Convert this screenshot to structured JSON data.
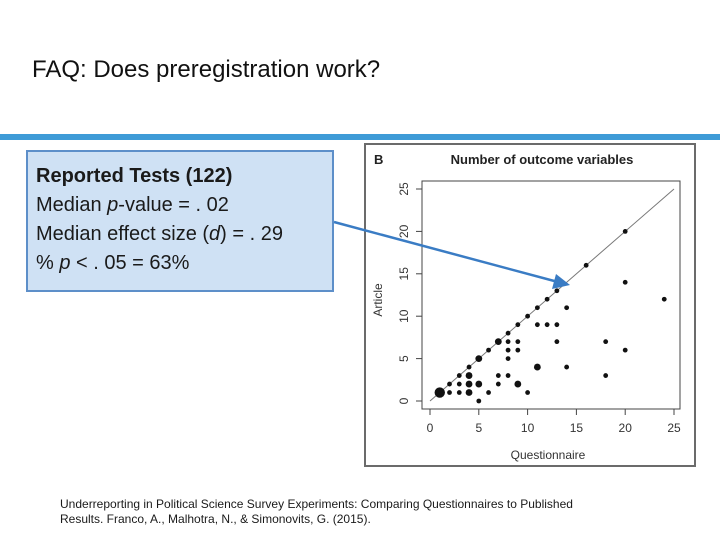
{
  "slide": {
    "title": "FAQ: Does preregistration work?",
    "accent_color": "#3e9bd7"
  },
  "stats_box": {
    "heading": "Reported Tests (122)",
    "median_p_prefix": "Median ",
    "median_p_italic": "p",
    "median_p_suffix": "-value = . 02",
    "median_d_prefix": "Median effect size (",
    "median_d_italic": "d",
    "median_d_suffix": ") = . 29",
    "pct_prefix": "% ",
    "pct_italic": "p",
    "pct_suffix": " < . 05 = 63%",
    "fill_color": "#cfe1f4",
    "border_color": "#5d8fc9"
  },
  "chart_data": {
    "type": "scatter",
    "panel_label": "B",
    "title": "Number of outcome variables",
    "xlabel": "Questionnaire",
    "ylabel": "Article",
    "xlim": [
      0,
      25
    ],
    "ylim": [
      0,
      25
    ],
    "xticks": [
      0,
      5,
      10,
      15,
      20,
      25
    ],
    "yticks": [
      0,
      5,
      10,
      15,
      20,
      25
    ],
    "reference_line": "y = x",
    "points": [
      {
        "x": 1,
        "y": 1,
        "size": 3
      },
      {
        "x": 2,
        "y": 1,
        "size": 1
      },
      {
        "x": 2,
        "y": 2,
        "size": 1
      },
      {
        "x": 3,
        "y": 1,
        "size": 1
      },
      {
        "x": 3,
        "y": 2,
        "size": 1
      },
      {
        "x": 3,
        "y": 3,
        "size": 1
      },
      {
        "x": 4,
        "y": 1,
        "size": 2
      },
      {
        "x": 4,
        "y": 2,
        "size": 2
      },
      {
        "x": 4,
        "y": 3,
        "size": 2
      },
      {
        "x": 4,
        "y": 4,
        "size": 1
      },
      {
        "x": 5,
        "y": 0,
        "size": 1
      },
      {
        "x": 5,
        "y": 2,
        "size": 2
      },
      {
        "x": 5,
        "y": 5,
        "size": 2
      },
      {
        "x": 6,
        "y": 1,
        "size": 1
      },
      {
        "x": 6,
        "y": 6,
        "size": 1
      },
      {
        "x": 7,
        "y": 2,
        "size": 1
      },
      {
        "x": 7,
        "y": 3,
        "size": 1
      },
      {
        "x": 7,
        "y": 7,
        "size": 2
      },
      {
        "x": 8,
        "y": 3,
        "size": 1
      },
      {
        "x": 8,
        "y": 5,
        "size": 1
      },
      {
        "x": 8,
        "y": 6,
        "size": 1
      },
      {
        "x": 8,
        "y": 7,
        "size": 1
      },
      {
        "x": 8,
        "y": 8,
        "size": 1
      },
      {
        "x": 9,
        "y": 2,
        "size": 2
      },
      {
        "x": 9,
        "y": 6,
        "size": 1
      },
      {
        "x": 9,
        "y": 7,
        "size": 1
      },
      {
        "x": 9,
        "y": 9,
        "size": 1
      },
      {
        "x": 10,
        "y": 1,
        "size": 1
      },
      {
        "x": 10,
        "y": 10,
        "size": 1
      },
      {
        "x": 11,
        "y": 4,
        "size": 2
      },
      {
        "x": 11,
        "y": 9,
        "size": 1
      },
      {
        "x": 11,
        "y": 11,
        "size": 1
      },
      {
        "x": 12,
        "y": 12,
        "size": 1
      },
      {
        "x": 12,
        "y": 9,
        "size": 1
      },
      {
        "x": 13,
        "y": 7,
        "size": 1
      },
      {
        "x": 13,
        "y": 9,
        "size": 1
      },
      {
        "x": 13,
        "y": 13,
        "size": 1
      },
      {
        "x": 14,
        "y": 4,
        "size": 1
      },
      {
        "x": 14,
        "y": 11,
        "size": 1
      },
      {
        "x": 16,
        "y": 16,
        "size": 1
      },
      {
        "x": 18,
        "y": 3,
        "size": 1
      },
      {
        "x": 18,
        "y": 7,
        "size": 1
      },
      {
        "x": 20,
        "y": 6,
        "size": 1
      },
      {
        "x": 20,
        "y": 14,
        "size": 1
      },
      {
        "x": 20,
        "y": 20,
        "size": 1
      },
      {
        "x": 24,
        "y": 12,
        "size": 1
      }
    ]
  },
  "annotation": {
    "arrow_color": "#3a7cc4"
  },
  "citation": {
    "line1": "Underreporting in Political Science Survey Experiments: Comparing Questionnaires to Published",
    "line2": "Results. Franco, A., Malhotra, N., & Simonovits, G. (2015)."
  }
}
